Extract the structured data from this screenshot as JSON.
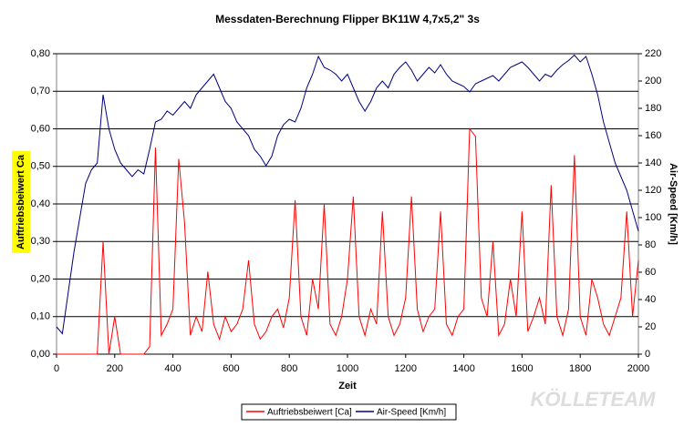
{
  "chart_data": {
    "type": "line",
    "title": "Messdaten-Berechnung Flipper BK11W 4,7x5,2\" 3s",
    "x_label": "Zeit",
    "y_label": "Auftriebsbeiwert Ca",
    "y2_label": "Air-Speed [Km/h]",
    "watermark": "KÖLLETEAM",
    "xlim": [
      0,
      2000
    ],
    "xticks": [
      0,
      200,
      400,
      600,
      800,
      1000,
      1200,
      1400,
      1600,
      1800,
      2000
    ],
    "ylim": [
      0,
      0.8
    ],
    "yticks": [
      {
        "value": 0,
        "label": "0,00"
      },
      {
        "value": 0.1,
        "label": "0,10"
      },
      {
        "value": 0.2,
        "label": "0,20"
      },
      {
        "value": 0.3,
        "label": "0,30"
      },
      {
        "value": 0.4,
        "label": "0,40"
      },
      {
        "value": 0.5,
        "label": "0,50"
      },
      {
        "value": 0.6,
        "label": "0,60"
      },
      {
        "value": 0.7,
        "label": "0,70"
      },
      {
        "value": 0.8,
        "label": "0,80"
      }
    ],
    "y2lim": [
      0,
      220
    ],
    "y2ticks": [
      0,
      20,
      40,
      60,
      80,
      100,
      120,
      140,
      160,
      180,
      200,
      220
    ],
    "grid": true,
    "legend": "bottom",
    "x": [
      0,
      20,
      40,
      60,
      80,
      100,
      120,
      140,
      160,
      180,
      200,
      220,
      240,
      260,
      280,
      300,
      320,
      340,
      360,
      380,
      400,
      420,
      440,
      460,
      480,
      500,
      520,
      540,
      560,
      580,
      600,
      620,
      640,
      660,
      680,
      700,
      720,
      740,
      760,
      780,
      800,
      820,
      840,
      860,
      880,
      900,
      920,
      940,
      960,
      980,
      1000,
      1020,
      1040,
      1060,
      1080,
      1100,
      1120,
      1140,
      1160,
      1180,
      1200,
      1220,
      1240,
      1260,
      1280,
      1300,
      1320,
      1340,
      1360,
      1380,
      1400,
      1420,
      1440,
      1460,
      1480,
      1500,
      1520,
      1540,
      1560,
      1580,
      1600,
      1620,
      1640,
      1660,
      1680,
      1700,
      1720,
      1740,
      1760,
      1780,
      1800,
      1820,
      1840,
      1860,
      1880,
      1900,
      1920,
      1940,
      1960,
      1980,
      2000
    ],
    "series": [
      {
        "name": "Auftriebsbeiwert [Ca]",
        "color": "#ff0000",
        "axis": "y",
        "values": [
          0,
          0,
          0,
          0,
          0,
          0,
          0,
          0,
          0.3,
          0,
          0.1,
          0,
          0,
          0,
          0,
          0,
          0.02,
          0.55,
          0.05,
          0.08,
          0.12,
          0.52,
          0.35,
          0.05,
          0.1,
          0.06,
          0.22,
          0.08,
          0.04,
          0.1,
          0.06,
          0.08,
          0.12,
          0.25,
          0.08,
          0.04,
          0.06,
          0.1,
          0.12,
          0.07,
          0.15,
          0.41,
          0.1,
          0.05,
          0.2,
          0.12,
          0.4,
          0.08,
          0.05,
          0.1,
          0.2,
          0.42,
          0.1,
          0.05,
          0.12,
          0.08,
          0.38,
          0.1,
          0.05,
          0.08,
          0.15,
          0.42,
          0.12,
          0.06,
          0.1,
          0.12,
          0.38,
          0.08,
          0.05,
          0.1,
          0.12,
          0.6,
          0.58,
          0.15,
          0.1,
          0.3,
          0.05,
          0.08,
          0.2,
          0.1,
          0.38,
          0.06,
          0.1,
          0.15,
          0.08,
          0.45,
          0.1,
          0.05,
          0.12,
          0.53,
          0.1,
          0.05,
          0.2,
          0.15,
          0.08,
          0.05,
          0.1,
          0.15,
          0.38,
          0.1,
          0.25
        ]
      },
      {
        "name": "Air-Speed [Km/h]",
        "color": "#000080",
        "axis": "y2",
        "values": [
          20,
          15,
          45,
          75,
          100,
          125,
          135,
          140,
          190,
          165,
          150,
          140,
          135,
          130,
          135,
          132,
          150,
          170,
          172,
          178,
          175,
          180,
          185,
          180,
          190,
          195,
          200,
          205,
          195,
          185,
          180,
          170,
          165,
          160,
          150,
          145,
          138,
          145,
          160,
          168,
          172,
          170,
          180,
          195,
          205,
          218,
          210,
          208,
          205,
          200,
          205,
          195,
          185,
          178,
          185,
          195,
          200,
          195,
          205,
          210,
          214,
          208,
          200,
          205,
          210,
          206,
          212,
          205,
          200,
          198,
          196,
          192,
          198,
          200,
          202,
          204,
          200,
          205,
          210,
          212,
          214,
          210,
          205,
          200,
          205,
          203,
          208,
          212,
          215,
          219,
          214,
          218,
          205,
          190,
          170,
          155,
          140,
          130,
          120,
          105,
          90
        ]
      }
    ]
  }
}
